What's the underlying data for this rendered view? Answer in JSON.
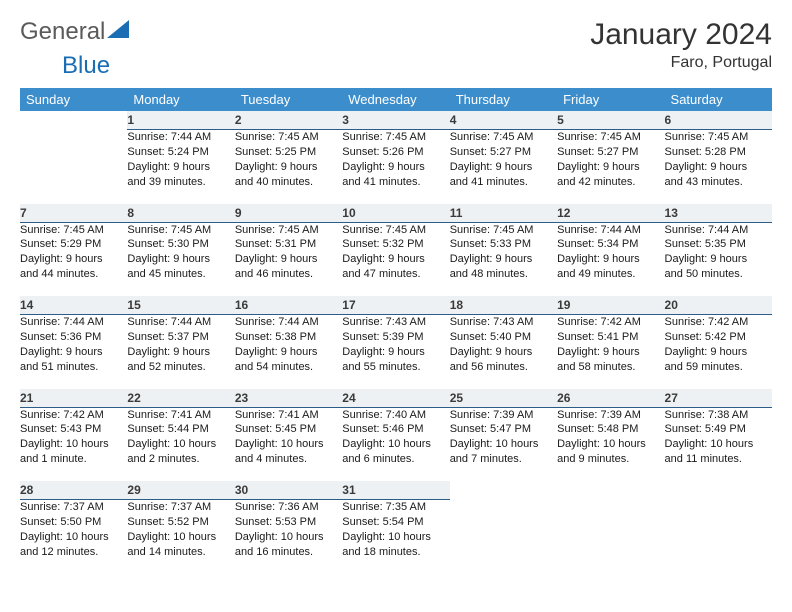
{
  "logo": {
    "text1": "General",
    "text2": "Blue"
  },
  "title": "January 2024",
  "location": "Faro, Portugal",
  "header_bg": "#3c8dcc",
  "daynum_bg": "#eef1f3",
  "daynum_border": "#2c5d88",
  "weekdays": [
    "Sunday",
    "Monday",
    "Tuesday",
    "Wednesday",
    "Thursday",
    "Friday",
    "Saturday"
  ],
  "weeks": [
    [
      {
        "n": "",
        "l1": "",
        "l2": "",
        "l3": "",
        "l4": ""
      },
      {
        "n": "1",
        "l1": "Sunrise: 7:44 AM",
        "l2": "Sunset: 5:24 PM",
        "l3": "Daylight: 9 hours",
        "l4": "and 39 minutes."
      },
      {
        "n": "2",
        "l1": "Sunrise: 7:45 AM",
        "l2": "Sunset: 5:25 PM",
        "l3": "Daylight: 9 hours",
        "l4": "and 40 minutes."
      },
      {
        "n": "3",
        "l1": "Sunrise: 7:45 AM",
        "l2": "Sunset: 5:26 PM",
        "l3": "Daylight: 9 hours",
        "l4": "and 41 minutes."
      },
      {
        "n": "4",
        "l1": "Sunrise: 7:45 AM",
        "l2": "Sunset: 5:27 PM",
        "l3": "Daylight: 9 hours",
        "l4": "and 41 minutes."
      },
      {
        "n": "5",
        "l1": "Sunrise: 7:45 AM",
        "l2": "Sunset: 5:27 PM",
        "l3": "Daylight: 9 hours",
        "l4": "and 42 minutes."
      },
      {
        "n": "6",
        "l1": "Sunrise: 7:45 AM",
        "l2": "Sunset: 5:28 PM",
        "l3": "Daylight: 9 hours",
        "l4": "and 43 minutes."
      }
    ],
    [
      {
        "n": "7",
        "l1": "Sunrise: 7:45 AM",
        "l2": "Sunset: 5:29 PM",
        "l3": "Daylight: 9 hours",
        "l4": "and 44 minutes."
      },
      {
        "n": "8",
        "l1": "Sunrise: 7:45 AM",
        "l2": "Sunset: 5:30 PM",
        "l3": "Daylight: 9 hours",
        "l4": "and 45 minutes."
      },
      {
        "n": "9",
        "l1": "Sunrise: 7:45 AM",
        "l2": "Sunset: 5:31 PM",
        "l3": "Daylight: 9 hours",
        "l4": "and 46 minutes."
      },
      {
        "n": "10",
        "l1": "Sunrise: 7:45 AM",
        "l2": "Sunset: 5:32 PM",
        "l3": "Daylight: 9 hours",
        "l4": "and 47 minutes."
      },
      {
        "n": "11",
        "l1": "Sunrise: 7:45 AM",
        "l2": "Sunset: 5:33 PM",
        "l3": "Daylight: 9 hours",
        "l4": "and 48 minutes."
      },
      {
        "n": "12",
        "l1": "Sunrise: 7:44 AM",
        "l2": "Sunset: 5:34 PM",
        "l3": "Daylight: 9 hours",
        "l4": "and 49 minutes."
      },
      {
        "n": "13",
        "l1": "Sunrise: 7:44 AM",
        "l2": "Sunset: 5:35 PM",
        "l3": "Daylight: 9 hours",
        "l4": "and 50 minutes."
      }
    ],
    [
      {
        "n": "14",
        "l1": "Sunrise: 7:44 AM",
        "l2": "Sunset: 5:36 PM",
        "l3": "Daylight: 9 hours",
        "l4": "and 51 minutes."
      },
      {
        "n": "15",
        "l1": "Sunrise: 7:44 AM",
        "l2": "Sunset: 5:37 PM",
        "l3": "Daylight: 9 hours",
        "l4": "and 52 minutes."
      },
      {
        "n": "16",
        "l1": "Sunrise: 7:44 AM",
        "l2": "Sunset: 5:38 PM",
        "l3": "Daylight: 9 hours",
        "l4": "and 54 minutes."
      },
      {
        "n": "17",
        "l1": "Sunrise: 7:43 AM",
        "l2": "Sunset: 5:39 PM",
        "l3": "Daylight: 9 hours",
        "l4": "and 55 minutes."
      },
      {
        "n": "18",
        "l1": "Sunrise: 7:43 AM",
        "l2": "Sunset: 5:40 PM",
        "l3": "Daylight: 9 hours",
        "l4": "and 56 minutes."
      },
      {
        "n": "19",
        "l1": "Sunrise: 7:42 AM",
        "l2": "Sunset: 5:41 PM",
        "l3": "Daylight: 9 hours",
        "l4": "and 58 minutes."
      },
      {
        "n": "20",
        "l1": "Sunrise: 7:42 AM",
        "l2": "Sunset: 5:42 PM",
        "l3": "Daylight: 9 hours",
        "l4": "and 59 minutes."
      }
    ],
    [
      {
        "n": "21",
        "l1": "Sunrise: 7:42 AM",
        "l2": "Sunset: 5:43 PM",
        "l3": "Daylight: 10 hours",
        "l4": "and 1 minute."
      },
      {
        "n": "22",
        "l1": "Sunrise: 7:41 AM",
        "l2": "Sunset: 5:44 PM",
        "l3": "Daylight: 10 hours",
        "l4": "and 2 minutes."
      },
      {
        "n": "23",
        "l1": "Sunrise: 7:41 AM",
        "l2": "Sunset: 5:45 PM",
        "l3": "Daylight: 10 hours",
        "l4": "and 4 minutes."
      },
      {
        "n": "24",
        "l1": "Sunrise: 7:40 AM",
        "l2": "Sunset: 5:46 PM",
        "l3": "Daylight: 10 hours",
        "l4": "and 6 minutes."
      },
      {
        "n": "25",
        "l1": "Sunrise: 7:39 AM",
        "l2": "Sunset: 5:47 PM",
        "l3": "Daylight: 10 hours",
        "l4": "and 7 minutes."
      },
      {
        "n": "26",
        "l1": "Sunrise: 7:39 AM",
        "l2": "Sunset: 5:48 PM",
        "l3": "Daylight: 10 hours",
        "l4": "and 9 minutes."
      },
      {
        "n": "27",
        "l1": "Sunrise: 7:38 AM",
        "l2": "Sunset: 5:49 PM",
        "l3": "Daylight: 10 hours",
        "l4": "and 11 minutes."
      }
    ],
    [
      {
        "n": "28",
        "l1": "Sunrise: 7:37 AM",
        "l2": "Sunset: 5:50 PM",
        "l3": "Daylight: 10 hours",
        "l4": "and 12 minutes."
      },
      {
        "n": "29",
        "l1": "Sunrise: 7:37 AM",
        "l2": "Sunset: 5:52 PM",
        "l3": "Daylight: 10 hours",
        "l4": "and 14 minutes."
      },
      {
        "n": "30",
        "l1": "Sunrise: 7:36 AM",
        "l2": "Sunset: 5:53 PM",
        "l3": "Daylight: 10 hours",
        "l4": "and 16 minutes."
      },
      {
        "n": "31",
        "l1": "Sunrise: 7:35 AM",
        "l2": "Sunset: 5:54 PM",
        "l3": "Daylight: 10 hours",
        "l4": "and 18 minutes."
      },
      {
        "n": "",
        "l1": "",
        "l2": "",
        "l3": "",
        "l4": ""
      },
      {
        "n": "",
        "l1": "",
        "l2": "",
        "l3": "",
        "l4": ""
      },
      {
        "n": "",
        "l1": "",
        "l2": "",
        "l3": "",
        "l4": ""
      }
    ]
  ]
}
